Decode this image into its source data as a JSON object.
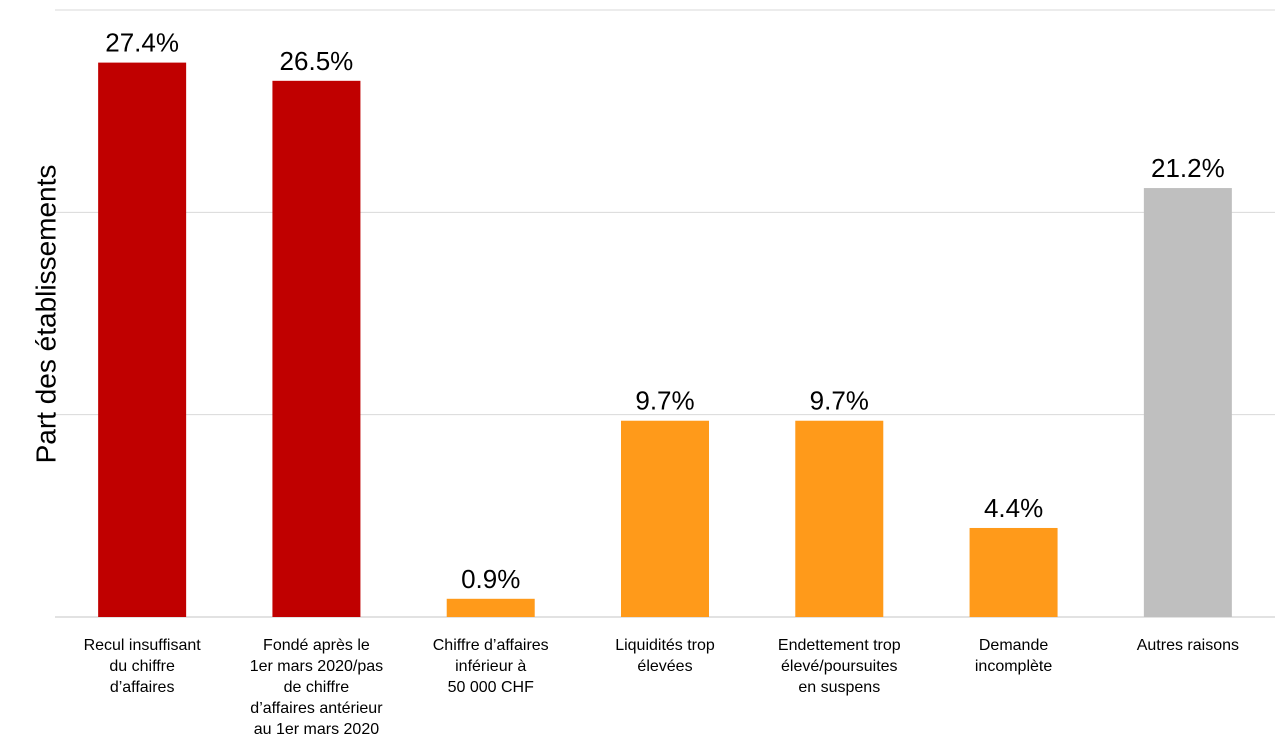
{
  "chart_data": {
    "type": "bar",
    "title": "",
    "xlabel": "",
    "ylabel": "Part des établissements",
    "ylim": [
      0,
      30
    ],
    "grid": true,
    "value_labels": [
      "27.4%",
      "26.5%",
      "0.9%",
      "9.7%",
      "9.7%",
      "4.4%",
      "21.2%"
    ],
    "categories": [
      [
        "Recul insuffisant",
        "du chiffre",
        "d’affaires"
      ],
      [
        "Fondé après le",
        "1er mars 2020/pas",
        "de chiffre",
        "d’affaires antérieur",
        "au 1er mars 2020"
      ],
      [
        "Chiffre d’affaires",
        "inférieur à",
        "50 000 CHF"
      ],
      [
        "Liquidités trop",
        "élevées"
      ],
      [
        "Endettement trop",
        "élevé/poursuites",
        "en suspens"
      ],
      [
        "Demande",
        "incomplète"
      ],
      [
        "Autres raisons"
      ]
    ],
    "values": [
      27.4,
      26.5,
      0.9,
      9.7,
      9.7,
      4.4,
      21.2
    ],
    "colors": [
      "#c00000",
      "#c00000",
      "#ff9a1a",
      "#ff9a1a",
      "#ff9a1a",
      "#ff9a1a",
      "#bfbfbf"
    ]
  }
}
